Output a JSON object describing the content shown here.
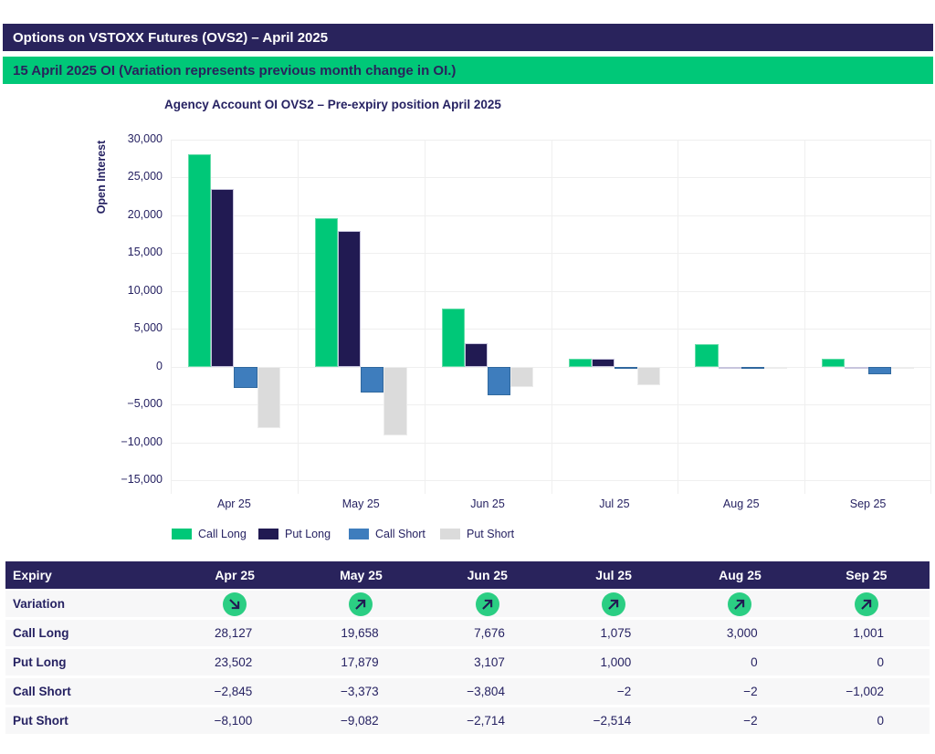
{
  "banner": {
    "title": "Options on VSTOXX Futures (OVS2) – April 2025",
    "subtitle": "15 April 2025 OI (Variation represents previous month change in OI.)"
  },
  "chart_data": {
    "type": "bar",
    "title": "Agency Account OI OVS2 – Pre-expiry position April 2025",
    "xlabel": "",
    "ylabel": "Open Interest",
    "categories": [
      "Apr 25",
      "May 25",
      "Jun 25",
      "Jul 25",
      "Aug 25",
      "Sep 25"
    ],
    "series": [
      {
        "name": "Call Long",
        "color": "#00C878",
        "edge": "#63DCA8",
        "values": [
          28127,
          19658,
          7676,
          1075,
          3000,
          1001
        ]
      },
      {
        "name": "Put Long",
        "color": "#211A52",
        "edge": "#C7C4DD",
        "values": [
          23502,
          17879,
          3107,
          1000,
          0,
          0
        ]
      },
      {
        "name": "Call Short",
        "color": "#3E7DBD",
        "edge": "#30689E",
        "values": [
          -2845,
          -3373,
          -3804,
          -2,
          -2,
          -1002
        ]
      },
      {
        "name": "Put Short",
        "color": "#DBDBDB",
        "edge": "#ECECEC",
        "values": [
          -8100,
          -9082,
          -2714,
          -2514,
          -2,
          0
        ]
      }
    ],
    "ylim": [
      -15000,
      30000
    ],
    "ytick_step": 5000,
    "grid": true,
    "legend_position": "bottom"
  },
  "table": {
    "header": [
      "Expiry",
      "Apr 25",
      "May 25",
      "Jun 25",
      "Jul 25",
      "Aug 25",
      "Sep 25"
    ],
    "variation": {
      "label": "Variation",
      "directions": [
        "down-right",
        "up-right",
        "up-right",
        "up-right",
        "up-right",
        "up-right"
      ]
    },
    "rows": [
      {
        "label": "Call Long",
        "values": [
          "28,127",
          "19,658",
          "7,676",
          "1,075",
          "3,000",
          "1,001"
        ]
      },
      {
        "label": "Put Long",
        "values": [
          "23,502",
          "17,879",
          "3,107",
          "1,000",
          "0",
          "0"
        ]
      },
      {
        "label": "Call Short",
        "values": [
          "−2,845",
          "−3,373",
          "−3,804",
          "−2",
          "−2",
          "−1,002"
        ]
      },
      {
        "label": "Put Short",
        "values": [
          "−8,100",
          "−9,082",
          "−2,714",
          "−2,514",
          "−2",
          "0"
        ]
      }
    ]
  },
  "colors": {
    "navy": "#29235C",
    "text_navy": "#262262",
    "green": "#00C878",
    "circle_green": "#2BCE83",
    "blue": "#3E7DBD",
    "gray": "#DBDBDB",
    "gridline": "#EFEFEF",
    "row_bg": "#F7F7F8"
  }
}
